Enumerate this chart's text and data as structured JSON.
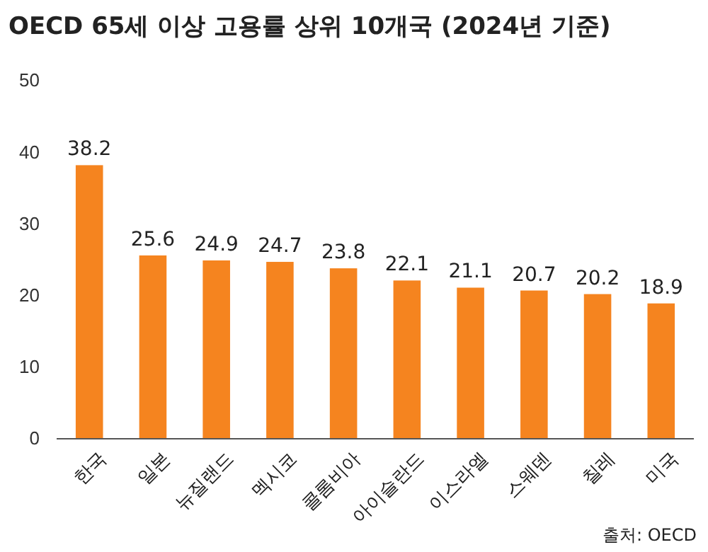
{
  "chart_data": {
    "type": "bar",
    "title": "OECD 65세 이상 고용률 상위 10개국 (2024년 기준)",
    "categories": [
      "한국",
      "일본",
      "뉴질랜드",
      "멕시코",
      "콜롬비아",
      "아이슬란드",
      "이스라엘",
      "스웨덴",
      "칠레",
      "미국"
    ],
    "values": [
      38.2,
      25.6,
      24.9,
      24.7,
      23.8,
      22.1,
      21.1,
      20.7,
      20.2,
      18.9
    ],
    "color": "#f5841f",
    "ylim": [
      0,
      50
    ],
    "yticks": [
      0,
      10,
      20,
      30,
      40,
      50
    ],
    "grid": false,
    "data_labels": true,
    "annotations": [
      "출처: OECD"
    ]
  }
}
